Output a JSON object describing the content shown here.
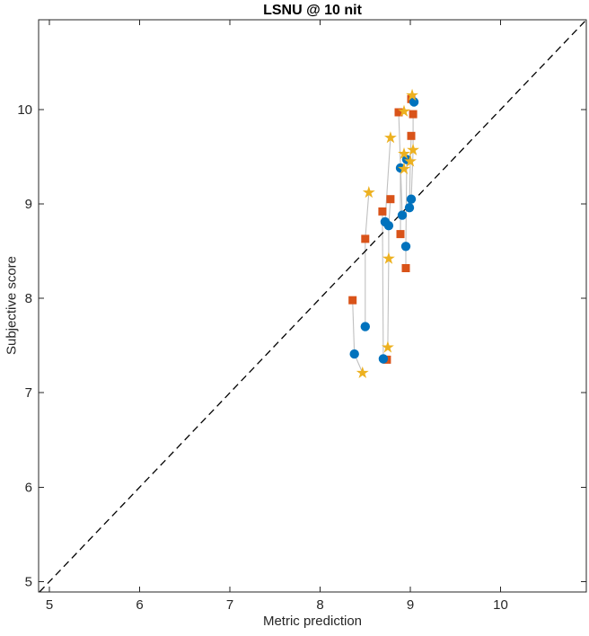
{
  "figure": {
    "title": "LSNU @ 10 nit",
    "background_color": "#ffffff"
  },
  "chart_data": {
    "type": "scatter",
    "title": "LSNU @ 10 nit",
    "xlabel": "Metric prediction",
    "ylabel": "Subjective score",
    "xlim": [
      4.88,
      10.95
    ],
    "ylim": [
      4.89,
      10.95
    ],
    "x_ticks": [
      5,
      6,
      7,
      8,
      9,
      10
    ],
    "y_ticks": [
      5,
      6,
      7,
      8,
      9,
      10
    ],
    "grid": false,
    "legend": "none",
    "axis_color": "#262626",
    "reference_line": {
      "name": "identity-line",
      "style": "dashed",
      "color": "#000000",
      "from": 4.89,
      "to": 10.94
    },
    "connector_lines": {
      "color": "#c0c0c0",
      "paths": [
        [
          [
            9.02,
            10.15
          ],
          [
            9.01,
            10.11
          ],
          [
            9.04,
            10.08
          ]
        ],
        [
          [
            8.93,
            9.98
          ],
          [
            8.87,
            9.97
          ],
          [
            8.91,
            8.88
          ]
        ],
        [
          [
            9.03,
            9.95
          ],
          [
            9.03,
            9.57
          ],
          [
            9.01,
            9.05
          ]
        ],
        [
          [
            9.01,
            9.72
          ],
          [
            9.0,
            9.45
          ],
          [
            8.99,
            8.96
          ]
        ],
        [
          [
            8.93,
            9.53
          ],
          [
            8.96,
            9.47
          ],
          [
            8.95,
            8.55
          ],
          [
            8.95,
            8.32
          ]
        ],
        [
          [
            8.78,
            9.7
          ],
          [
            8.72,
            8.81
          ]
        ],
        [
          [
            8.93,
            9.37
          ],
          [
            8.89,
            9.38
          ],
          [
            8.89,
            8.68
          ]
        ],
        [
          [
            8.54,
            9.12
          ],
          [
            8.5,
            8.63
          ],
          [
            8.5,
            7.7
          ]
        ],
        [
          [
            8.78,
            9.05
          ],
          [
            8.76,
            8.77
          ],
          [
            8.76,
            8.42
          ],
          [
            8.75,
            7.48
          ]
        ],
        [
          [
            8.36,
            7.98
          ],
          [
            8.38,
            7.41
          ],
          [
            8.47,
            7.21
          ]
        ],
        [
          [
            8.69,
            8.92
          ],
          [
            8.7,
            7.36
          ],
          [
            8.74,
            7.35
          ]
        ]
      ]
    },
    "series": [
      {
        "name": "squares-series",
        "marker": "square",
        "color": "#D95319",
        "points": [
          [
            9.01,
            10.11
          ],
          [
            8.87,
            9.97
          ],
          [
            9.03,
            9.95
          ],
          [
            9.01,
            9.72
          ],
          [
            8.78,
            9.05
          ],
          [
            8.69,
            8.92
          ],
          [
            8.89,
            8.68
          ],
          [
            8.5,
            8.63
          ],
          [
            8.95,
            8.32
          ],
          [
            8.36,
            7.98
          ],
          [
            8.74,
            7.35
          ]
        ]
      },
      {
        "name": "circles-series",
        "marker": "circle",
        "color": "#0072BD",
        "points": [
          [
            9.04,
            10.08
          ],
          [
            8.96,
            9.47
          ],
          [
            8.89,
            9.38
          ],
          [
            9.01,
            9.05
          ],
          [
            8.99,
            8.96
          ],
          [
            8.91,
            8.88
          ],
          [
            8.72,
            8.81
          ],
          [
            8.76,
            8.77
          ],
          [
            8.95,
            8.55
          ],
          [
            8.5,
            7.7
          ],
          [
            8.38,
            7.41
          ],
          [
            8.7,
            7.36
          ]
        ]
      },
      {
        "name": "stars-series",
        "marker": "star",
        "color": "#EDB120",
        "points": [
          [
            9.02,
            10.15
          ],
          [
            8.93,
            9.98
          ],
          [
            8.78,
            9.7
          ],
          [
            9.03,
            9.57
          ],
          [
            8.93,
            9.53
          ],
          [
            9.0,
            9.45
          ],
          [
            8.93,
            9.37
          ],
          [
            8.54,
            9.12
          ],
          [
            8.76,
            8.42
          ],
          [
            8.75,
            7.48
          ],
          [
            8.47,
            7.21
          ]
        ]
      }
    ]
  }
}
